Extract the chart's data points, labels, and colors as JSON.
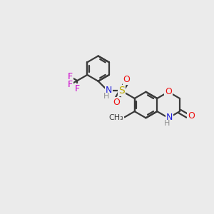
{
  "bg_color": "#ebebeb",
  "bond_color": "#3a3a3a",
  "atom_colors": {
    "C": "#3a3a3a",
    "N": "#2020dd",
    "O": "#ee1111",
    "S": "#bbaa00",
    "F": "#cc00cc",
    "H": "#909090"
  },
  "figsize": [
    3.0,
    3.0
  ],
  "dpi": 100,
  "lw": 1.6
}
